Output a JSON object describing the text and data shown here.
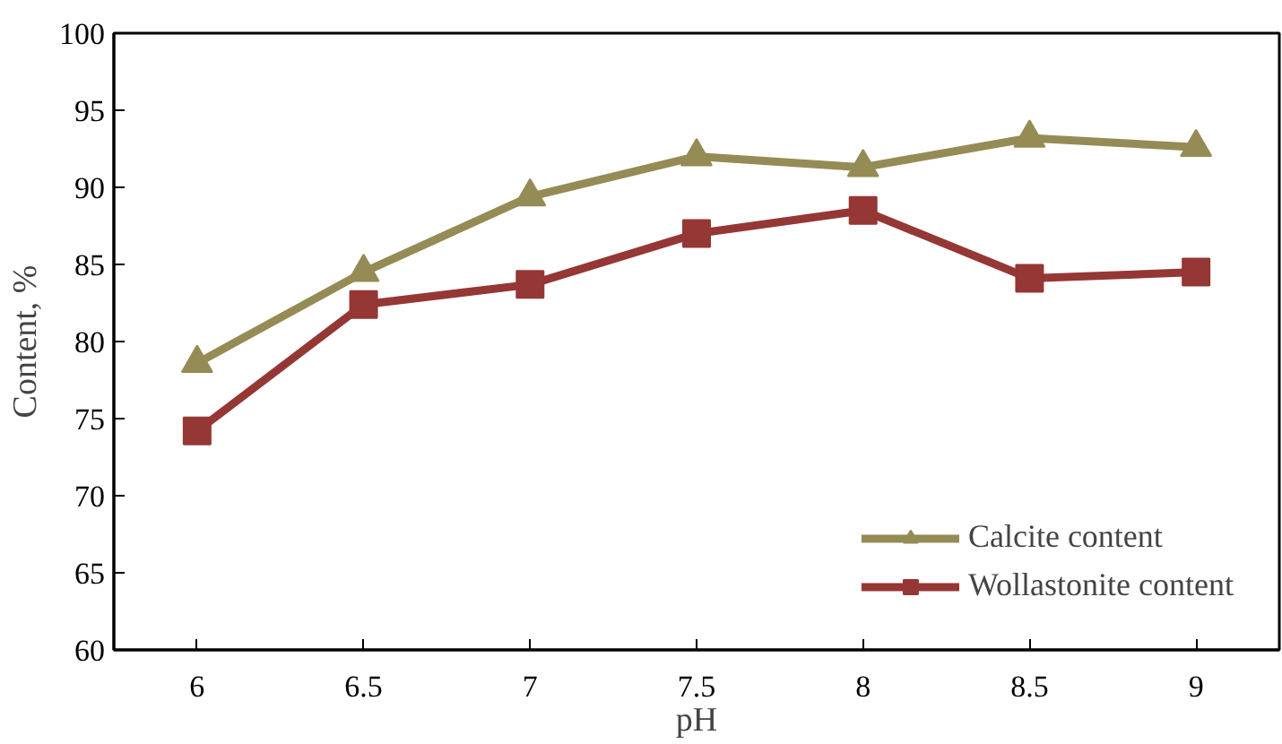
{
  "chart_data": {
    "type": "line",
    "xlabel": "pH",
    "ylabel": "Content, %",
    "categories": [
      "6",
      "6.5",
      "7",
      "7.5",
      "8",
      "8.5",
      "9"
    ],
    "series": [
      {
        "name": "Calcite content",
        "color": "#958b55",
        "marker": "triangle",
        "values": [
          78.6,
          84.5,
          89.4,
          92.0,
          91.3,
          93.2,
          92.6
        ]
      },
      {
        "name": "Wollastonite content",
        "color": "#953735",
        "marker": "square",
        "values": [
          74.2,
          82.4,
          83.7,
          87.0,
          88.5,
          84.1,
          84.5
        ]
      }
    ],
    "ylim": [
      60,
      100
    ],
    "yticks": [
      60,
      65,
      70,
      75,
      80,
      85,
      90,
      95,
      100
    ],
    "grid": false,
    "legend": "bottom right",
    "line_style": "solid"
  }
}
